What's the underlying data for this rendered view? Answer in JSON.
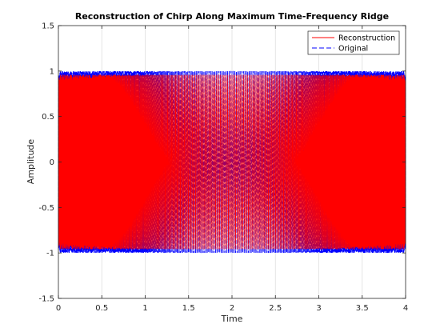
{
  "chart_data": {
    "type": "line",
    "title": "Reconstruction of Chirp Along Maximum Time-Frequency Ridge",
    "xlabel": "Time",
    "ylabel": "Amplitude",
    "xlim": [
      0,
      4
    ],
    "ylim": [
      -1.5,
      1.5
    ],
    "xticks": [
      "0",
      "0.5",
      "1",
      "1.5",
      "2",
      "2.5",
      "3",
      "3.5",
      "4"
    ],
    "yticks": [
      "-1.5",
      "-1",
      "-0.5",
      "0",
      "0.5",
      "1",
      "1.5"
    ],
    "grid": "x",
    "legend_position": "top-right",
    "signal": {
      "description_visible": "quadratic chirp, amplitude ±1, frequency lowest near t=2",
      "t_start": 0,
      "t_end": 4,
      "amplitude": 1
    },
    "series": [
      {
        "name": "Reconstruction",
        "color": "#ff0000",
        "style": "solid",
        "amplitude": 0.96
      },
      {
        "name": "Original",
        "color": "#0000ff",
        "style": "dashed",
        "amplitude": 1.0
      }
    ]
  }
}
